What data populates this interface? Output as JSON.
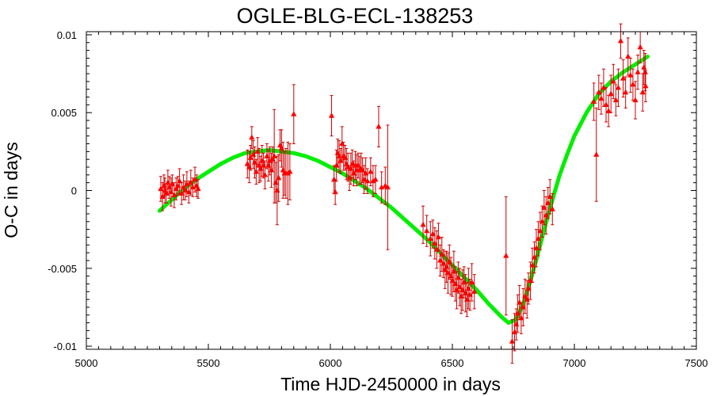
{
  "chart_data": {
    "type": "scatter",
    "title": "OGLE-BLG-ECL-138253",
    "xlabel": "Time HJD-2450000 in days",
    "ylabel": "O-C in days",
    "xlim": [
      5000,
      7500
    ],
    "ylim": [
      -0.0102,
      0.0102
    ],
    "xticks": [
      5000,
      5500,
      6000,
      6500,
      7000,
      7500
    ],
    "xtick_labels": [
      "5000",
      "5500",
      "6000",
      "6500",
      "7000",
      "7500"
    ],
    "yticks": [
      -0.01,
      -0.005,
      0,
      0.005,
      0.01
    ],
    "ytick_labels": [
      "-0.01",
      "-0.005",
      "0",
      "0.005",
      "0.01"
    ],
    "grid": false,
    "colors": {
      "points": "#ff0000",
      "errorbars": "#cc0000",
      "fit": "#00ee00"
    },
    "series": [
      {
        "kind": "points-with-errorbars",
        "points": [
          [
            5305,
            0.0001,
            0.0008
          ],
          [
            5312,
            -0.0004,
            0.0009
          ],
          [
            5318,
            0.0003,
            0.0007
          ],
          [
            5322,
            0.0,
            0.0008
          ],
          [
            5328,
            -0.0002,
            0.0006
          ],
          [
            5334,
            0.0005,
            0.0008
          ],
          [
            5340,
            0.0002,
            0.0007
          ],
          [
            5347,
            -0.0001,
            0.0009
          ],
          [
            5352,
            0.0004,
            0.0006
          ],
          [
            5360,
            -0.0003,
            0.0008
          ],
          [
            5368,
            0.0001,
            0.0007
          ],
          [
            5375,
            0.0003,
            0.0006
          ],
          [
            5382,
            0.0006,
            0.0008
          ],
          [
            5390,
            -0.0002,
            0.0007
          ],
          [
            5398,
            0.0002,
            0.0008
          ],
          [
            5405,
            0.0,
            0.0006
          ],
          [
            5412,
            0.0004,
            0.0008
          ],
          [
            5420,
            -0.0001,
            0.0007
          ],
          [
            5428,
            0.0005,
            0.0008
          ],
          [
            5436,
            0.0002,
            0.0006
          ],
          [
            5445,
            0.0007,
            0.0008
          ],
          [
            5452,
            0.0003,
            0.0007
          ],
          [
            5458,
            0.0001,
            0.0006
          ],
          [
            5660,
            0.0017,
            0.0009
          ],
          [
            5668,
            0.0015,
            0.001
          ],
          [
            5673,
            0.0021,
            0.0008
          ],
          [
            5678,
            0.0034,
            0.0007
          ],
          [
            5684,
            0.0023,
            0.0009
          ],
          [
            5690,
            0.0018,
            0.001
          ],
          [
            5696,
            0.0012,
            0.0008
          ],
          [
            5702,
            0.0025,
            0.0009
          ],
          [
            5708,
            0.0016,
            0.0011
          ],
          [
            5714,
            0.0014,
            0.0008
          ],
          [
            5720,
            0.0019,
            0.001
          ],
          [
            5726,
            0.0016,
            0.0008
          ],
          [
            5732,
            0.001,
            0.0009
          ],
          [
            5740,
            0.0022,
            0.0008
          ],
          [
            5746,
            0.0016,
            0.001
          ],
          [
            5752,
            0.0019,
            0.0009
          ],
          [
            5758,
            0.0013,
            0.0011
          ],
          [
            5764,
            0.002,
            0.0008
          ],
          [
            5770,
            0.0022,
            0.003
          ],
          [
            5776,
            0.0005,
            0.0013
          ],
          [
            5782,
            -0.0,
            0.0022
          ],
          [
            5788,
            0.0008,
            0.0015
          ],
          [
            5794,
            0.0029,
            0.001
          ],
          [
            5800,
            0.0027,
            0.0012
          ],
          [
            5806,
            0.0013,
            0.0018
          ],
          [
            5812,
            0.0011,
            0.0014
          ],
          [
            5818,
            0.0011,
            0.0016
          ],
          [
            5826,
            0.0011,
            0.002
          ],
          [
            5834,
            0.0012,
            0.0018
          ],
          [
            5850,
            0.0049,
            0.0019
          ],
          [
            6005,
            0.0048,
            0.0013
          ],
          [
            6015,
            0.0007,
            0.0009
          ],
          [
            6020,
            -0.0001,
            0.0008
          ],
          [
            6025,
            0.0016,
            0.001
          ],
          [
            6030,
            0.0024,
            0.0009
          ],
          [
            6036,
            0.0022,
            0.001
          ],
          [
            6042,
            0.0019,
            0.0008
          ],
          [
            6048,
            0.003,
            0.0011
          ],
          [
            6054,
            0.0022,
            0.0009
          ],
          [
            6060,
            0.0021,
            0.0008
          ],
          [
            6066,
            0.0017,
            0.001
          ],
          [
            6072,
            0.0015,
            0.0009
          ],
          [
            6078,
            0.0008,
            0.0008
          ],
          [
            6084,
            0.0014,
            0.001
          ],
          [
            6090,
            0.0017,
            0.0009
          ],
          [
            6096,
            0.0011,
            0.0008
          ],
          [
            6102,
            0.0016,
            0.0009
          ],
          [
            6108,
            0.0013,
            0.001
          ],
          [
            6114,
            0.0016,
            0.0008
          ],
          [
            6120,
            0.0013,
            0.0009
          ],
          [
            6126,
            0.0014,
            0.001
          ],
          [
            6132,
            0.0013,
            0.0008
          ],
          [
            6138,
            0.0007,
            0.0009
          ],
          [
            6145,
            0.0011,
            0.001
          ],
          [
            6152,
            0.0006,
            0.0008
          ],
          [
            6165,
            0.0012,
            0.0009
          ],
          [
            6175,
            0.0006,
            0.001
          ],
          [
            6185,
            0.0007,
            0.0009
          ],
          [
            6198,
            0.0041,
            0.0013
          ],
          [
            6210,
            0.0002,
            0.001
          ],
          [
            6225,
            0.0003,
            0.0012
          ],
          [
            6235,
            0.0002,
            0.004
          ],
          [
            6380,
            -0.0022,
            0.0012
          ],
          [
            6395,
            -0.0026,
            0.001
          ],
          [
            6410,
            -0.0031,
            0.0011
          ],
          [
            6420,
            -0.0028,
            0.0009
          ],
          [
            6428,
            -0.0034,
            0.001
          ],
          [
            6436,
            -0.0038,
            0.0012
          ],
          [
            6443,
            -0.003,
            0.0009
          ],
          [
            6450,
            -0.0045,
            0.001
          ],
          [
            6457,
            -0.0041,
            0.0011
          ],
          [
            6463,
            -0.0047,
            0.0009
          ],
          [
            6470,
            -0.0051,
            0.0012
          ],
          [
            6476,
            -0.0049,
            0.001
          ],
          [
            6482,
            -0.0053,
            0.0013
          ],
          [
            6488,
            -0.0046,
            0.0011
          ],
          [
            6494,
            -0.0055,
            0.0012
          ],
          [
            6500,
            -0.0058,
            0.001
          ],
          [
            6506,
            -0.0052,
            0.0013
          ],
          [
            6512,
            -0.006,
            0.0011
          ],
          [
            6518,
            -0.0064,
            0.0012
          ],
          [
            6524,
            -0.0056,
            0.001
          ],
          [
            6530,
            -0.0062,
            0.0012
          ],
          [
            6536,
            -0.0068,
            0.0011
          ],
          [
            6542,
            -0.0064,
            0.0013
          ],
          [
            6548,
            -0.0059,
            0.001
          ],
          [
            6554,
            -0.0066,
            0.0012
          ],
          [
            6560,
            -0.007,
            0.0011
          ],
          [
            6566,
            -0.0063,
            0.0013
          ],
          [
            6572,
            -0.0067,
            0.001
          ],
          [
            6580,
            -0.0059,
            0.0012
          ],
          [
            6590,
            -0.0065,
            0.0011
          ],
          [
            6720,
            -0.0042,
            0.0038
          ],
          [
            6745,
            -0.0097,
            0.0014
          ],
          [
            6755,
            -0.0091,
            0.0012
          ],
          [
            6762,
            -0.0086,
            0.001
          ],
          [
            6768,
            -0.0079,
            0.0012
          ],
          [
            6775,
            -0.0072,
            0.0011
          ],
          [
            6782,
            -0.0082,
            0.001
          ],
          [
            6790,
            -0.0075,
            0.0012
          ],
          [
            6798,
            -0.0068,
            0.0011
          ],
          [
            6806,
            -0.007,
            0.0012
          ],
          [
            6812,
            -0.0063,
            0.001
          ],
          [
            6820,
            -0.0058,
            0.0012
          ],
          [
            6828,
            -0.0048,
            0.0011
          ],
          [
            6836,
            -0.0043,
            0.001
          ],
          [
            6844,
            -0.0037,
            0.0012
          ],
          [
            6852,
            -0.0031,
            0.0011
          ],
          [
            6860,
            -0.0026,
            0.0012
          ],
          [
            6868,
            -0.002,
            0.001
          ],
          [
            6876,
            -0.0011,
            0.0011
          ],
          [
            6884,
            -0.0016,
            0.0012
          ],
          [
            6892,
            -0.0008,
            0.001
          ],
          [
            6900,
            -0.0004,
            0.0011
          ],
          [
            6910,
            -0.0012,
            0.001
          ],
          [
            7080,
            0.0057,
            0.0012
          ],
          [
            7090,
            0.0023,
            0.003
          ],
          [
            7100,
            0.0063,
            0.0011
          ],
          [
            7110,
            0.0059,
            0.001
          ],
          [
            7120,
            0.0066,
            0.0012
          ],
          [
            7130,
            0.0055,
            0.0011
          ],
          [
            7140,
            0.0051,
            0.001
          ],
          [
            7150,
            0.0062,
            0.0012
          ],
          [
            7160,
            0.007,
            0.0011
          ],
          [
            7170,
            0.0058,
            0.001
          ],
          [
            7180,
            0.0066,
            0.0012
          ],
          [
            7190,
            0.0096,
            0.0011
          ],
          [
            7200,
            0.0072,
            0.0012
          ],
          [
            7210,
            0.0063,
            0.001
          ],
          [
            7220,
            0.0086,
            0.0012
          ],
          [
            7230,
            0.0074,
            0.0011
          ],
          [
            7240,
            0.0068,
            0.001
          ],
          [
            7250,
            0.0058,
            0.0012
          ],
          [
            7260,
            0.0076,
            0.0011
          ],
          [
            7270,
            0.0092,
            0.001
          ],
          [
            7280,
            0.0063,
            0.0012
          ],
          [
            7285,
            0.0079,
            0.0011
          ],
          [
            7290,
            0.0076,
            0.0012
          ],
          [
            7292,
            0.0067,
            0.001
          ]
        ]
      },
      {
        "kind": "fit-curve",
        "x": [
          5300,
          5350,
          5400,
          5450,
          5500,
          5550,
          5600,
          5650,
          5700,
          5750,
          5800,
          5850,
          5900,
          5950,
          6000,
          6050,
          6100,
          6150,
          6200,
          6250,
          6300,
          6350,
          6400,
          6450,
          6500,
          6550,
          6600,
          6650,
          6700,
          6730,
          6760,
          6790,
          6820,
          6850,
          6880,
          6910,
          6940,
          6970,
          7000,
          7050,
          7100,
          7150,
          7200,
          7250,
          7300
        ],
        "y": [
          -0.0013,
          -0.0006,
          0.0001,
          0.0007,
          0.0012,
          0.0017,
          0.0021,
          0.0024,
          0.0025,
          0.0026,
          0.0025,
          0.0024,
          0.0022,
          0.0019,
          0.0015,
          0.0011,
          0.0006,
          0.0001,
          -0.0005,
          -0.0011,
          -0.0018,
          -0.0025,
          -0.0032,
          -0.004,
          -0.0048,
          -0.0056,
          -0.0064,
          -0.0073,
          -0.0081,
          -0.0085,
          -0.0083,
          -0.0073,
          -0.0058,
          -0.0041,
          -0.0023,
          -0.0006,
          0.001,
          0.0023,
          0.0035,
          0.005,
          0.0062,
          0.007,
          0.0076,
          0.0081,
          0.0086
        ]
      }
    ]
  }
}
